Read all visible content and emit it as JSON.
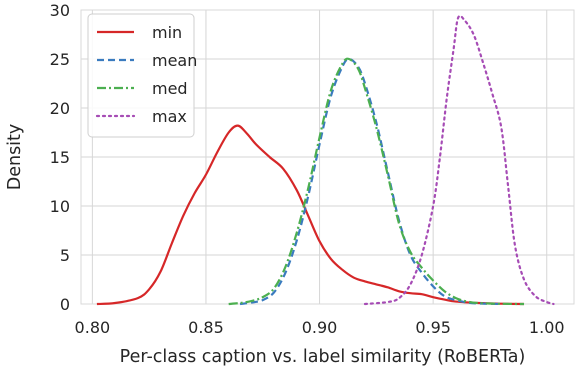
{
  "chart_data": {
    "type": "line",
    "title": "",
    "xlabel": "Per-class caption vs. label similarity (RoBERTa)",
    "ylabel": "Density",
    "xlim": [
      0.795,
      1.012
    ],
    "ylim": [
      0,
      30
    ],
    "x_ticks": [
      0.8,
      0.85,
      0.9,
      0.95,
      1.0
    ],
    "x_tick_labels": [
      "0.80",
      "0.85",
      "0.90",
      "0.95",
      "1.00"
    ],
    "y_ticks": [
      0,
      5,
      10,
      15,
      20,
      25,
      30
    ],
    "y_tick_labels": [
      "0",
      "5",
      "10",
      "15",
      "20",
      "25",
      "30"
    ],
    "grid": true,
    "legend_position": "top-left",
    "series": [
      {
        "name": "min",
        "color": "#d62728",
        "dash": "solid",
        "points": [
          [
            0.802,
            0.0
          ],
          [
            0.81,
            0.1
          ],
          [
            0.82,
            0.6
          ],
          [
            0.825,
            1.5
          ],
          [
            0.83,
            3.3
          ],
          [
            0.835,
            6.2
          ],
          [
            0.84,
            9.0
          ],
          [
            0.845,
            11.3
          ],
          [
            0.85,
            13.2
          ],
          [
            0.855,
            15.5
          ],
          [
            0.86,
            17.5
          ],
          [
            0.864,
            18.2
          ],
          [
            0.868,
            17.4
          ],
          [
            0.872,
            16.3
          ],
          [
            0.878,
            15.0
          ],
          [
            0.884,
            13.8
          ],
          [
            0.89,
            11.6
          ],
          [
            0.895,
            9.0
          ],
          [
            0.9,
            6.4
          ],
          [
            0.905,
            4.6
          ],
          [
            0.91,
            3.5
          ],
          [
            0.915,
            2.7
          ],
          [
            0.92,
            2.3
          ],
          [
            0.925,
            2.0
          ],
          [
            0.93,
            1.7
          ],
          [
            0.935,
            1.3
          ],
          [
            0.94,
            1.1
          ],
          [
            0.945,
            1.0
          ],
          [
            0.95,
            0.7
          ],
          [
            0.955,
            0.45
          ],
          [
            0.96,
            0.25
          ],
          [
            0.97,
            0.1
          ],
          [
            0.98,
            0.03
          ],
          [
            0.99,
            0.0
          ]
        ]
      },
      {
        "name": "mean",
        "color": "#3a7bbf",
        "dash": "dashed",
        "points": [
          [
            0.865,
            0.0
          ],
          [
            0.87,
            0.15
          ],
          [
            0.875,
            0.4
          ],
          [
            0.88,
            1.2
          ],
          [
            0.885,
            3.2
          ],
          [
            0.89,
            6.5
          ],
          [
            0.895,
            11.0
          ],
          [
            0.9,
            16.3
          ],
          [
            0.905,
            21.2
          ],
          [
            0.91,
            24.2
          ],
          [
            0.913,
            25.0
          ],
          [
            0.917,
            24.2
          ],
          [
            0.92,
            22.5
          ],
          [
            0.925,
            18.5
          ],
          [
            0.93,
            13.5
          ],
          [
            0.935,
            8.5
          ],
          [
            0.94,
            5.0
          ],
          [
            0.945,
            3.2
          ],
          [
            0.95,
            1.8
          ],
          [
            0.955,
            0.8
          ],
          [
            0.96,
            0.4
          ],
          [
            0.965,
            0.15
          ],
          [
            0.97,
            0.05
          ],
          [
            0.98,
            0.0
          ]
        ]
      },
      {
        "name": "med",
        "color": "#4caf50",
        "dash": "dashdot",
        "points": [
          [
            0.86,
            0.0
          ],
          [
            0.865,
            0.1
          ],
          [
            0.87,
            0.3
          ],
          [
            0.875,
            0.7
          ],
          [
            0.88,
            1.6
          ],
          [
            0.885,
            3.8
          ],
          [
            0.89,
            7.3
          ],
          [
            0.895,
            11.8
          ],
          [
            0.9,
            17.0
          ],
          [
            0.905,
            21.8
          ],
          [
            0.91,
            24.5
          ],
          [
            0.913,
            25.0
          ],
          [
            0.917,
            24.0
          ],
          [
            0.92,
            22.0
          ],
          [
            0.925,
            18.0
          ],
          [
            0.93,
            13.2
          ],
          [
            0.935,
            8.2
          ],
          [
            0.94,
            5.3
          ],
          [
            0.945,
            3.7
          ],
          [
            0.95,
            2.4
          ],
          [
            0.955,
            1.3
          ],
          [
            0.96,
            0.6
          ],
          [
            0.965,
            0.25
          ],
          [
            0.97,
            0.1
          ],
          [
            0.98,
            0.02
          ],
          [
            0.99,
            0.0
          ]
        ]
      },
      {
        "name": "max",
        "color": "#a64cb5",
        "dash": "dotted",
        "points": [
          [
            0.92,
            0.0
          ],
          [
            0.93,
            0.2
          ],
          [
            0.935,
            0.6
          ],
          [
            0.94,
            2.0
          ],
          [
            0.945,
            5.0
          ],
          [
            0.95,
            10.0
          ],
          [
            0.953,
            15.0
          ],
          [
            0.956,
            21.0
          ],
          [
            0.959,
            26.0
          ],
          [
            0.961,
            29.2
          ],
          [
            0.964,
            28.9
          ],
          [
            0.968,
            27.4
          ],
          [
            0.972,
            24.6
          ],
          [
            0.976,
            21.5
          ],
          [
            0.98,
            18.0
          ],
          [
            0.983,
            12.0
          ],
          [
            0.986,
            6.0
          ],
          [
            0.99,
            2.5
          ],
          [
            0.995,
            0.8
          ],
          [
            1.0,
            0.2
          ],
          [
            1.003,
            0.0
          ]
        ]
      }
    ]
  }
}
